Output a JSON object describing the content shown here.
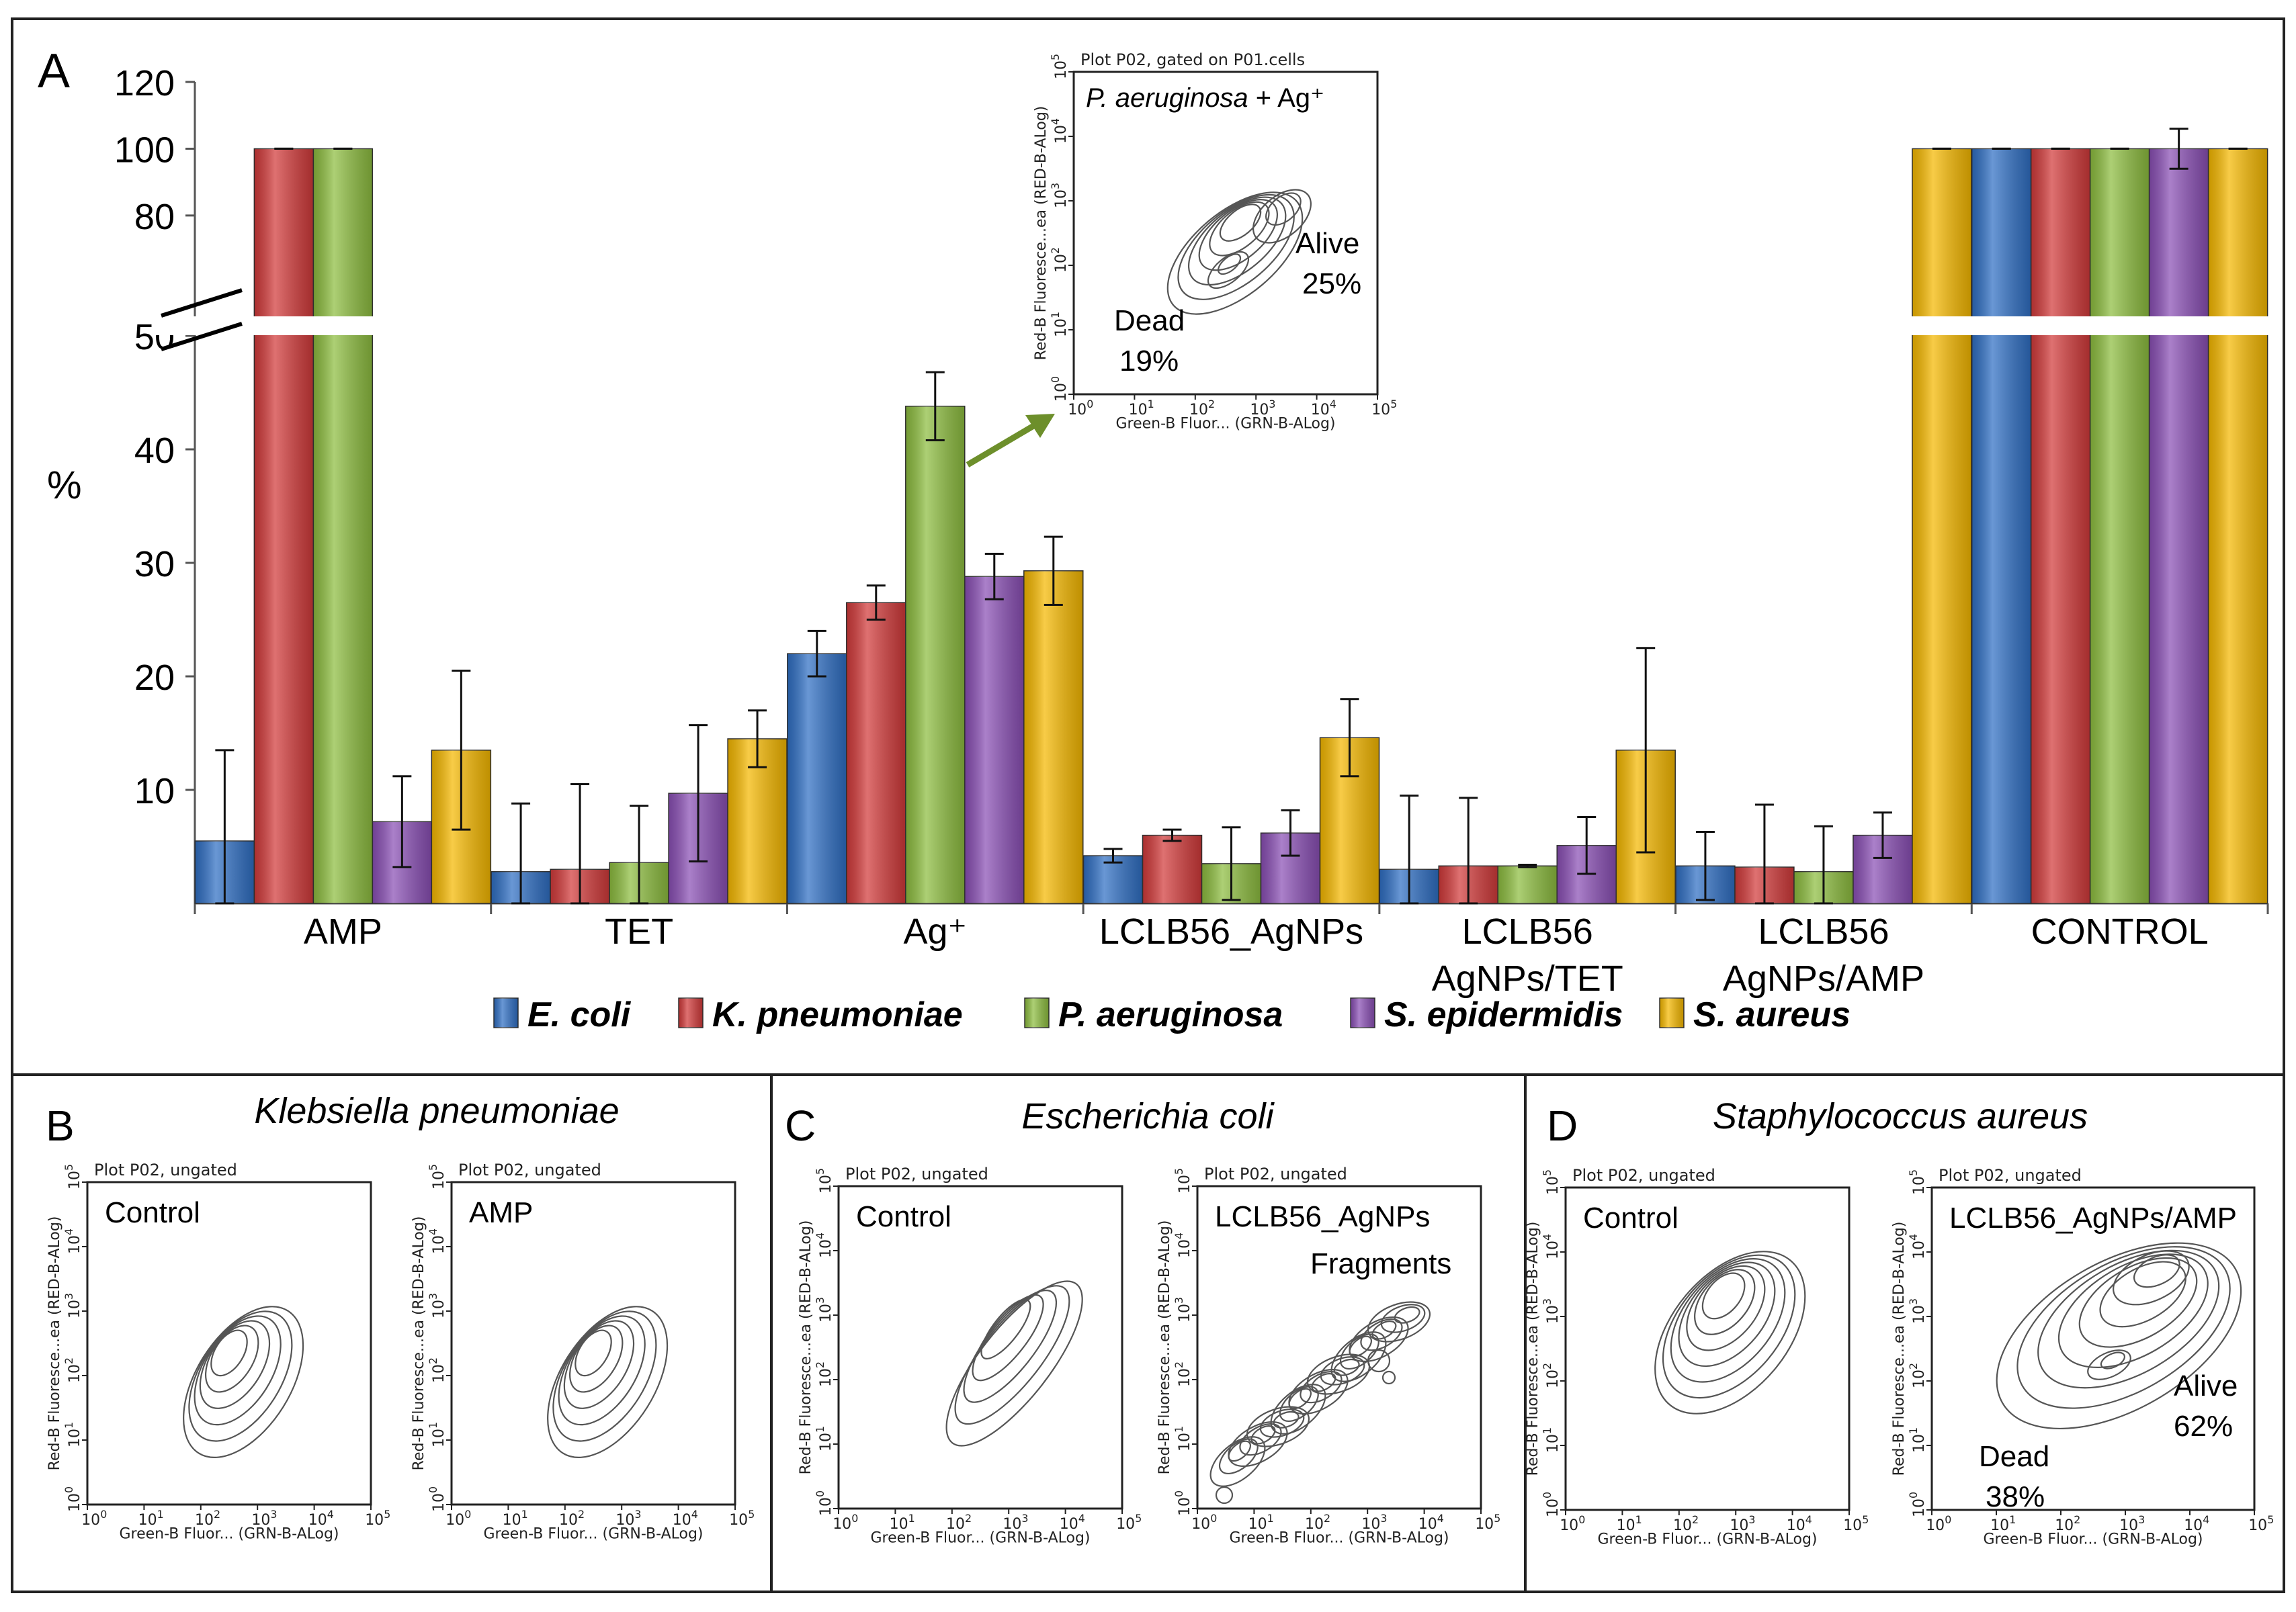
{
  "chart_data": [
    {
      "type": "bar",
      "panel_label": "A",
      "ylabel": "%",
      "y_ticks": [
        "10",
        "20",
        "30",
        "40",
        "50",
        "80",
        "100",
        "120"
      ],
      "axis_break": true,
      "categories": [
        {
          "lines": [
            "AMP"
          ]
        },
        {
          "lines": [
            "TET"
          ]
        },
        {
          "lines": [
            "Ag⁺"
          ]
        },
        {
          "lines": [
            "LCLB56_AgNPs"
          ]
        },
        {
          "lines": [
            "LCLB56",
            "AgNPs/TET"
          ]
        },
        {
          "lines": [
            "LCLB56",
            "AgNPs/AMP"
          ]
        },
        {
          "lines": [
            "CONTROL"
          ]
        }
      ],
      "series": [
        {
          "name": "E. coli",
          "color": "#2f6fc4",
          "values": [
            5.5,
            2.8,
            22,
            4.2,
            3.0,
            3.3,
            100
          ],
          "errors": [
            8,
            6,
            2,
            0.6,
            6.5,
            3,
            0
          ]
        },
        {
          "name": "K. pneumoniae",
          "color": "#d23a3a",
          "values": [
            100,
            3.0,
            26.5,
            6.0,
            3.3,
            3.2,
            100
          ],
          "errors": [
            0,
            7.5,
            1.5,
            0.5,
            6,
            5.5,
            0
          ]
        },
        {
          "name": "P. aeruginosa",
          "color": "#8dbd3f",
          "values": [
            100,
            3.6,
            43.8,
            3.5,
            3.3,
            2.8,
            100
          ],
          "errors": [
            0,
            5,
            3,
            3.2,
            0.1,
            4,
            0
          ]
        },
        {
          "name": "S. epidermidis",
          "color": "#8a4fb5",
          "values": [
            7.2,
            9.7,
            28.8,
            6.2,
            5.1,
            6.0,
            100
          ],
          "errors": [
            4,
            6,
            2,
            2,
            2.5,
            2,
            6
          ]
        },
        {
          "name": "S. aureus",
          "color": "#f5b800",
          "values": [
            13.5,
            14.5,
            29.3,
            14.6,
            13.5,
            100,
            100
          ],
          "errors": [
            7,
            2.5,
            3,
            3.4,
            9,
            0,
            0
          ]
        }
      ]
    },
    {
      "type": "contour",
      "panel": "A-inset",
      "plot_header": "Plot P02, gated on P01.cells",
      "title_species": "P. aeruginosa",
      "title_rest": " + Ag⁺",
      "annotations": [
        "Alive",
        "25%",
        "Dead",
        "19%"
      ],
      "xlabel": "Green-B Fluor... (GRN-B-ALog)",
      "ylabel": "Red-B Fluoresce...ea (RED-B-ALog)",
      "decades": [
        "0",
        "1",
        "2",
        "3",
        "4",
        "5"
      ]
    },
    {
      "type": "contour",
      "panel_label": "B",
      "panel_title": "Klebsiella pneumoniae",
      "plots": [
        {
          "header": "Plot P02, ungated",
          "label": "Control",
          "annotations": []
        },
        {
          "header": "Plot P02, ungated",
          "label": "AMP",
          "annotations": []
        }
      ],
      "xlabel": "Green-B Fluor... (GRN-B-ALog)",
      "ylabel": "Red-B Fluoresce...ea (RED-B-ALog)"
    },
    {
      "type": "contour",
      "panel_label": "C",
      "panel_title": "Escherichia coli",
      "plots": [
        {
          "header": "Plot P02, ungated",
          "label": "Control",
          "annotations": []
        },
        {
          "header": "Plot P02, ungated",
          "label": "LCLB56_AgNPs",
          "annotations": [
            "Fragments"
          ]
        }
      ],
      "xlabel": "Green-B Fluor... (GRN-B-ALog)",
      "ylabel": "Red-B Fluoresce...ea (RED-B-ALog)"
    },
    {
      "type": "contour",
      "panel_label": "D",
      "panel_title": "Staphylococcus aureus",
      "plots": [
        {
          "header": "Plot P02, ungated",
          "label": "Control",
          "annotations": []
        },
        {
          "header": "Plot P02, ungated",
          "label": "LCLB56_AgNPs/AMP",
          "annotations": [
            "Alive",
            "62%",
            "Dead",
            "38%"
          ]
        }
      ],
      "xlabel": "Green-B Fluor... (GRN-B-ALog)",
      "ylabel": "Red-B Fluoresce...ea (RED-B-ALog)"
    }
  ]
}
